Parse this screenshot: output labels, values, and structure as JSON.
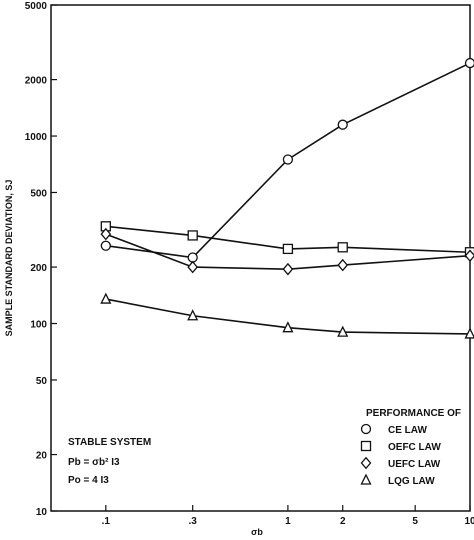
{
  "chart_data": {
    "type": "line",
    "xlabel": "σb",
    "ylabel": "SAMPLE STANDARD DEVIATION, SJ",
    "xscale": "log",
    "yscale": "log",
    "xlim": [
      0.05,
      10
    ],
    "ylim": [
      10,
      5000
    ],
    "x_ticks": [
      0.1,
      0.3,
      1,
      2,
      5,
      10
    ],
    "x_tick_labels": [
      ".1",
      ".3",
      "1",
      "2",
      "5",
      "10"
    ],
    "y_ticks": [
      10,
      20,
      50,
      100,
      200,
      500,
      1000,
      2000,
      5000
    ],
    "y_tick_labels": [
      "10",
      "20",
      "50",
      "100",
      "200",
      "500",
      "1000",
      "2000",
      "5000"
    ],
    "x": [
      0.1,
      0.3,
      1,
      2,
      10
    ],
    "series": [
      {
        "name": "CE LAW",
        "marker": "circle",
        "values": [
          260,
          225,
          750,
          1150,
          2450
        ]
      },
      {
        "name": "OEFC LAW",
        "marker": "square",
        "values": [
          330,
          295,
          250,
          255,
          240
        ]
      },
      {
        "name": "UEFC LAW",
        "marker": "diamond",
        "values": [
          300,
          200,
          195,
          205,
          230
        ]
      },
      {
        "name": "LQG LAW",
        "marker": "triangle",
        "values": [
          135,
          110,
          95,
          90,
          88
        ]
      }
    ],
    "legend_title": "PERFORMANCE OF",
    "legend_position": "bottom-right",
    "annotation": {
      "title": "STABLE SYSTEM",
      "line1": "Pb = σb² I3",
      "line2": "Po = 4 I3"
    }
  }
}
